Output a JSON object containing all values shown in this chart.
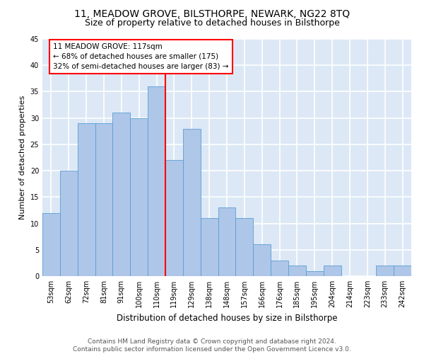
{
  "title": "11, MEADOW GROVE, BILSTHORPE, NEWARK, NG22 8TQ",
  "subtitle": "Size of property relative to detached houses in Bilsthorpe",
  "xlabel": "Distribution of detached houses by size in Bilsthorpe",
  "ylabel": "Number of detached properties",
  "categories": [
    "53sqm",
    "62sqm",
    "72sqm",
    "81sqm",
    "91sqm",
    "100sqm",
    "110sqm",
    "119sqm",
    "129sqm",
    "138sqm",
    "148sqm",
    "157sqm",
    "166sqm",
    "176sqm",
    "185sqm",
    "195sqm",
    "204sqm",
    "214sqm",
    "223sqm",
    "233sqm",
    "242sqm"
  ],
  "values": [
    12,
    20,
    29,
    29,
    31,
    30,
    36,
    22,
    28,
    11,
    13,
    11,
    6,
    3,
    2,
    1,
    2,
    0,
    0,
    2,
    2
  ],
  "bar_color": "#aec6e8",
  "bar_edge_color": "#5a9fd4",
  "vline_x": 6.5,
  "vline_color": "red",
  "annotation_text": "11 MEADOW GROVE: 117sqm\n← 68% of detached houses are smaller (175)\n32% of semi-detached houses are larger (83) →",
  "annotation_box_color": "white",
  "annotation_box_edge_color": "red",
  "ylim": [
    0,
    45
  ],
  "yticks": [
    0,
    5,
    10,
    15,
    20,
    25,
    30,
    35,
    40,
    45
  ],
  "footer": "Contains HM Land Registry data © Crown copyright and database right 2024.\nContains public sector information licensed under the Open Government Licence v3.0.",
  "bg_color": "#dce8f5",
  "grid_color": "white",
  "title_fontsize": 10,
  "subtitle_fontsize": 9,
  "tick_fontsize": 7,
  "ylabel_fontsize": 8,
  "xlabel_fontsize": 8.5,
  "footer_fontsize": 6.5,
  "annot_fontsize": 7.5
}
